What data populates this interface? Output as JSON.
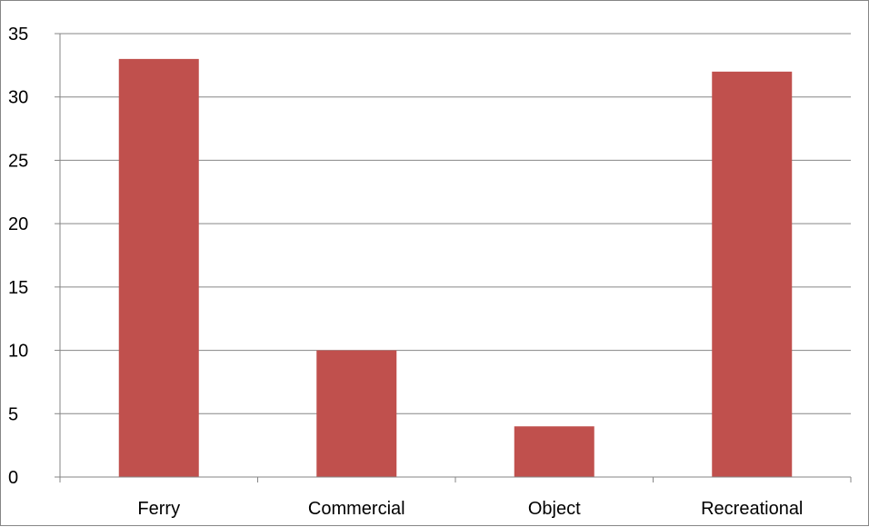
{
  "chart_data": {
    "type": "bar",
    "categories": [
      "Ferry",
      "Commercial",
      "Object",
      "Recreational"
    ],
    "values": [
      33,
      10,
      4,
      32
    ],
    "title": "",
    "xlabel": "",
    "ylabel": "",
    "ylim": [
      0,
      35
    ],
    "yticks": [
      0,
      5,
      10,
      15,
      20,
      25,
      30,
      35
    ],
    "grid": true,
    "legend": "none",
    "bar_color": "#C0504D",
    "grid_color": "#868686"
  }
}
